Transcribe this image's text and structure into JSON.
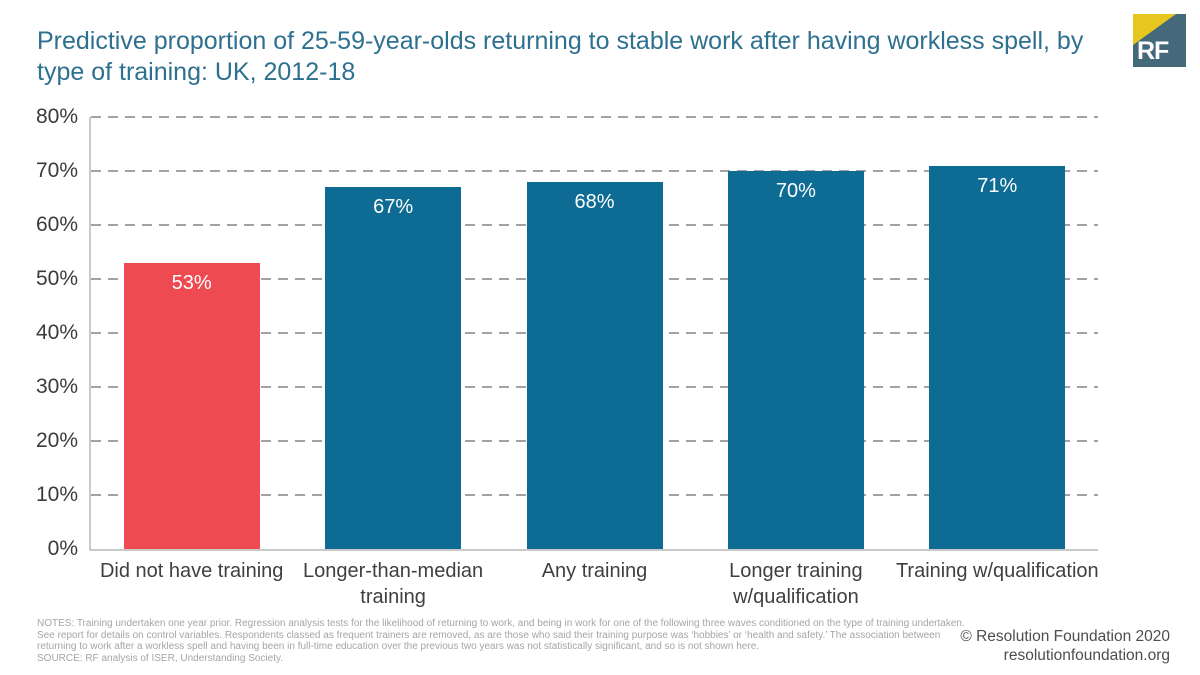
{
  "header": {
    "title_lines": [
      "Predictive proportion of 25-59-year-olds returning to stable work after having workless spell, by",
      "type of training: UK, 2012-18"
    ],
    "logo_text": "RF"
  },
  "colors": {
    "title": "#2e708f",
    "highlight_bar": "#ee4a51",
    "bar": "#0d6b94",
    "gridline": "#a3a3a3",
    "axis_line": "#c9c9c9",
    "logo_bg": "#44697b",
    "logo_accent": "#e7c71f",
    "bar_value_text": "#ffffff"
  },
  "chart_data": {
    "type": "bar",
    "title": "Predictive proportion of 25-59-year-olds returning to stable work after having workless spell, by type of training: UK, 2012-18",
    "categories": [
      "Did not have training",
      "Longer-than-median training",
      "Any training",
      "Longer training w/qualification",
      "Training w/qualification"
    ],
    "values": [
      53,
      67,
      68,
      70,
      71
    ],
    "value_labels": [
      "53%",
      "67%",
      "68%",
      "70%",
      "71%"
    ],
    "bar_colors": [
      "#ee4a51",
      "#0d6b94",
      "#0d6b94",
      "#0d6b94",
      "#0d6b94"
    ],
    "xlabel": "",
    "ylabel": "",
    "ylim": [
      0,
      80
    ],
    "ytick_step": 10,
    "ytick_labels": [
      "0%",
      "10%",
      "20%",
      "30%",
      "40%",
      "50%",
      "60%",
      "70%",
      "80%"
    ],
    "grid": "horizontal dashed, on",
    "legend": "none"
  },
  "notes": {
    "lines": [
      "NOTES: Training undertaken one year prior. Regression analysis tests for the likelihood of returning to work, and being in work for one of the following three waves conditioned on the type of training undertaken.",
      "See report for details on control variables. Respondents classed as frequent trainers are removed, as are those who said their training purpose was ‘hobbies’ or ‘health and safety.’ The association between",
      "returning to work after a workless spell and having been in full-time education over the previous two years was not statistically significant, and so is not shown here.",
      "SOURCE: RF analysis of ISER, Understanding Society."
    ]
  },
  "footer": {
    "copyright": "© Resolution Foundation 2020",
    "website": "resolutionfoundation.org"
  }
}
